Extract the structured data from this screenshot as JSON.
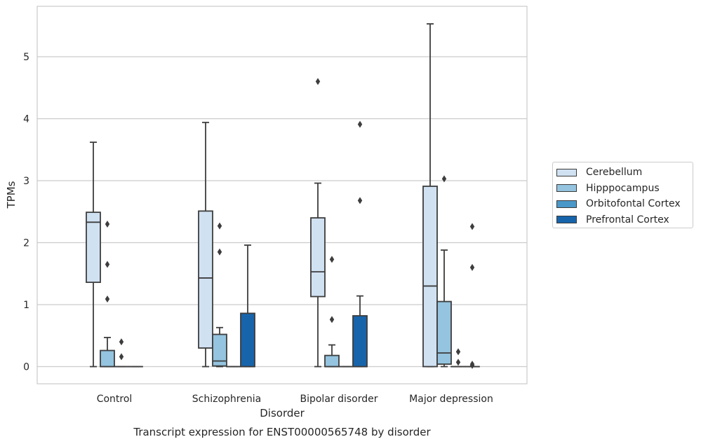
{
  "chart_data": {
    "type": "boxplot",
    "title": "Transcript expression for ENST00000565748 by disorder",
    "xlabel": "Disorder",
    "ylabel": "TPMs",
    "ylim": [
      -0.27,
      5.85
    ],
    "yticks": [
      0,
      1,
      2,
      3,
      4,
      5
    ],
    "grid": "horizontal",
    "legend_position": "right",
    "categories": [
      "Control",
      "Schizophrenia",
      "Bipolar disorder",
      "Major depression"
    ],
    "series": [
      {
        "name": "Cerebellum",
        "color": "#d0e1f2",
        "boxes": [
          {
            "whislo": 0,
            "q1": 1.36,
            "median": 2.33,
            "q3": 2.49,
            "whishi": 3.62,
            "fliers": []
          },
          {
            "whislo": 0,
            "q1": 0.3,
            "median": 1.43,
            "q3": 2.51,
            "whishi": 3.94,
            "fliers": []
          },
          {
            "whislo": 0,
            "q1": 1.13,
            "median": 1.53,
            "q3": 2.4,
            "whishi": 2.96,
            "fliers": [
              4.6
            ]
          },
          {
            "whislo": 0,
            "q1": 0,
            "median": 1.3,
            "q3": 2.91,
            "whishi": 5.53,
            "fliers": []
          }
        ]
      },
      {
        "name": "Hipppocampus",
        "color": "#94c4df",
        "boxes": [
          {
            "whislo": 0,
            "q1": 0,
            "median": 0,
            "q3": 0.26,
            "whishi": 0.47,
            "fliers": [
              1.09,
              1.65,
              2.3
            ]
          },
          {
            "whislo": 0,
            "q1": 0.01,
            "median": 0.09,
            "q3": 0.52,
            "whishi": 0.63,
            "fliers": [
              1.85,
              2.27
            ]
          },
          {
            "whislo": 0,
            "q1": 0,
            "median": 0,
            "q3": 0.18,
            "whishi": 0.35,
            "fliers": [
              0.76,
              1.73
            ]
          },
          {
            "whislo": 0,
            "q1": 0.04,
            "median": 0.22,
            "q3": 1.05,
            "whishi": 1.88,
            "fliers": [
              3.03
            ]
          }
        ]
      },
      {
        "name": "Orbitofontal Cortex",
        "color": "#4a98c9",
        "boxes": [
          {
            "whislo": 0,
            "q1": 0,
            "median": 0,
            "q3": 0,
            "whishi": 0,
            "fliers": [
              0.16,
              0.4
            ]
          },
          {
            "whislo": 0,
            "q1": 0,
            "median": 0,
            "q3": 0,
            "whishi": 0,
            "fliers": []
          },
          {
            "whislo": 0,
            "q1": 0,
            "median": 0,
            "q3": 0,
            "whishi": 0,
            "fliers": []
          },
          {
            "whislo": 0,
            "q1": 0,
            "median": 0,
            "q3": 0,
            "whishi": 0,
            "fliers": [
              0.07,
              0.24
            ]
          }
        ]
      },
      {
        "name": "Prefrontal Cortex",
        "color": "#1764ab",
        "boxes": [
          {
            "whislo": 0,
            "q1": 0,
            "median": 0,
            "q3": 0,
            "whishi": 0,
            "fliers": []
          },
          {
            "whislo": 0,
            "q1": 0,
            "median": 0,
            "q3": 0.86,
            "whishi": 1.96,
            "fliers": []
          },
          {
            "whislo": 0,
            "q1": 0,
            "median": 0,
            "q3": 0.82,
            "whishi": 1.14,
            "fliers": [
              2.68,
              3.91
            ]
          },
          {
            "whislo": 0,
            "q1": 0,
            "median": 0,
            "q3": 0,
            "whishi": 0,
            "fliers": [
              0.02,
              0.04,
              1.6,
              2.26
            ]
          }
        ]
      }
    ]
  }
}
